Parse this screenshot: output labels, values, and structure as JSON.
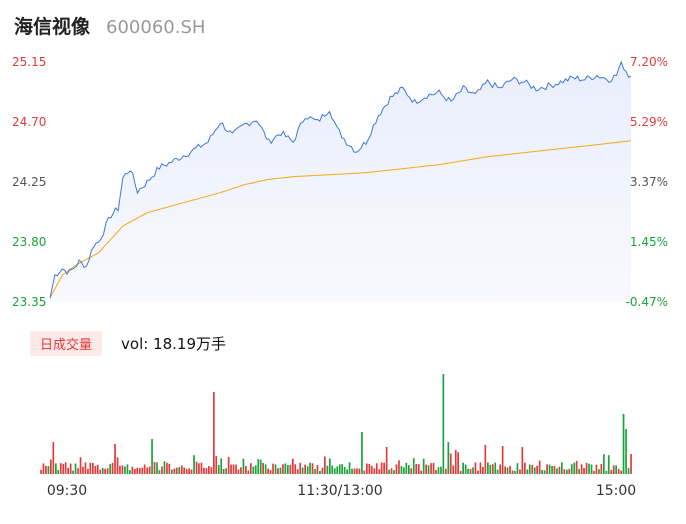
{
  "header": {
    "name": "海信视像",
    "code": "600060.SH"
  },
  "volume_bar": {
    "period": "日成交量",
    "vol_prefix": "vol:",
    "vol_value": "18.19万手"
  },
  "colors": {
    "up": "#e23a3a",
    "down": "#1aa33a",
    "price_line": "#3d78d8",
    "avg_line": "#f0a81c",
    "area_top": "#e9eefb",
    "axis_text": "#555555"
  },
  "chart_data": [
    {
      "type": "line",
      "title": "",
      "x_ticks": [
        "09:30",
        "11:30/13:00",
        "15:00"
      ],
      "y_ticks_left": [
        "25.15",
        "24.70",
        "24.25",
        "23.80",
        "23.35"
      ],
      "y_ticks_right": [
        "7.20%",
        "5.29%",
        "3.37%",
        "1.45%",
        "-0.47%"
      ],
      "ylim": [
        23.35,
        25.15
      ],
      "points": 240,
      "series": [
        {
          "role": "price",
          "keys": [
            [
              0,
              23.38
            ],
            [
              2,
              23.55
            ],
            [
              5,
              23.6
            ],
            [
              8,
              23.57
            ],
            [
              12,
              23.65
            ],
            [
              15,
              23.62
            ],
            [
              18,
              23.78
            ],
            [
              20,
              23.8
            ],
            [
              25,
              24.0
            ],
            [
              28,
              24.05
            ],
            [
              30,
              24.28
            ],
            [
              33,
              24.35
            ],
            [
              36,
              24.18
            ],
            [
              40,
              24.25
            ],
            [
              45,
              24.36
            ],
            [
              50,
              24.4
            ],
            [
              55,
              24.45
            ],
            [
              60,
              24.5
            ],
            [
              65,
              24.55
            ],
            [
              70,
              24.7
            ],
            [
              75,
              24.6
            ],
            [
              80,
              24.68
            ],
            [
              85,
              24.72
            ],
            [
              90,
              24.55
            ],
            [
              95,
              24.62
            ],
            [
              100,
              24.55
            ],
            [
              105,
              24.75
            ],
            [
              110,
              24.7
            ],
            [
              115,
              24.8
            ],
            [
              118,
              24.65
            ],
            [
              122,
              24.55
            ],
            [
              126,
              24.48
            ],
            [
              130,
              24.55
            ],
            [
              135,
              24.75
            ],
            [
              140,
              24.88
            ],
            [
              145,
              24.95
            ],
            [
              150,
              24.85
            ],
            [
              155,
              24.9
            ],
            [
              160,
              24.92
            ],
            [
              165,
              24.85
            ],
            [
              170,
              24.95
            ],
            [
              175,
              24.9
            ],
            [
              180,
              25.0
            ],
            [
              185,
              24.95
            ],
            [
              190,
              25.02
            ],
            [
              195,
              25.0
            ],
            [
              200,
              24.95
            ],
            [
              205,
              24.97
            ],
            [
              210,
              25.0
            ],
            [
              215,
              25.03
            ],
            [
              220,
              25.02
            ],
            [
              225,
              25.05
            ],
            [
              230,
              25.02
            ],
            [
              233,
              25.05
            ],
            [
              235,
              25.15
            ],
            [
              238,
              25.05
            ],
            [
              239,
              25.05
            ]
          ]
        },
        {
          "role": "average",
          "keys": [
            [
              0,
              23.38
            ],
            [
              5,
              23.55
            ],
            [
              10,
              23.62
            ],
            [
              20,
              23.72
            ],
            [
              30,
              23.92
            ],
            [
              40,
              24.02
            ],
            [
              50,
              24.07
            ],
            [
              60,
              24.12
            ],
            [
              70,
              24.17
            ],
            [
              80,
              24.23
            ],
            [
              90,
              24.27
            ],
            [
              100,
              24.29
            ],
            [
              110,
              24.3
            ],
            [
              120,
              24.31
            ],
            [
              130,
              24.32
            ],
            [
              140,
              24.34
            ],
            [
              150,
              24.36
            ],
            [
              160,
              24.38
            ],
            [
              170,
              24.41
            ],
            [
              180,
              24.44
            ],
            [
              190,
              24.46
            ],
            [
              200,
              24.48
            ],
            [
              210,
              24.5
            ],
            [
              220,
              24.52
            ],
            [
              230,
              24.54
            ],
            [
              239,
              24.56
            ]
          ]
        }
      ]
    },
    {
      "type": "bar",
      "title": "",
      "bars": 240,
      "relative_scale": true,
      "spikes": [
        [
          5,
          0.32
        ],
        [
          30,
          0.3
        ],
        [
          45,
          0.35
        ],
        [
          70,
          0.82
        ],
        [
          130,
          0.42
        ],
        [
          140,
          0.27
        ],
        [
          163,
          1.0
        ],
        [
          165,
          0.32
        ],
        [
          168,
          0.24
        ],
        [
          180,
          0.29
        ],
        [
          187,
          0.28
        ],
        [
          195,
          0.27
        ],
        [
          236,
          0.6
        ],
        [
          237,
          0.45
        ],
        [
          239,
          0.2
        ]
      ]
    }
  ]
}
